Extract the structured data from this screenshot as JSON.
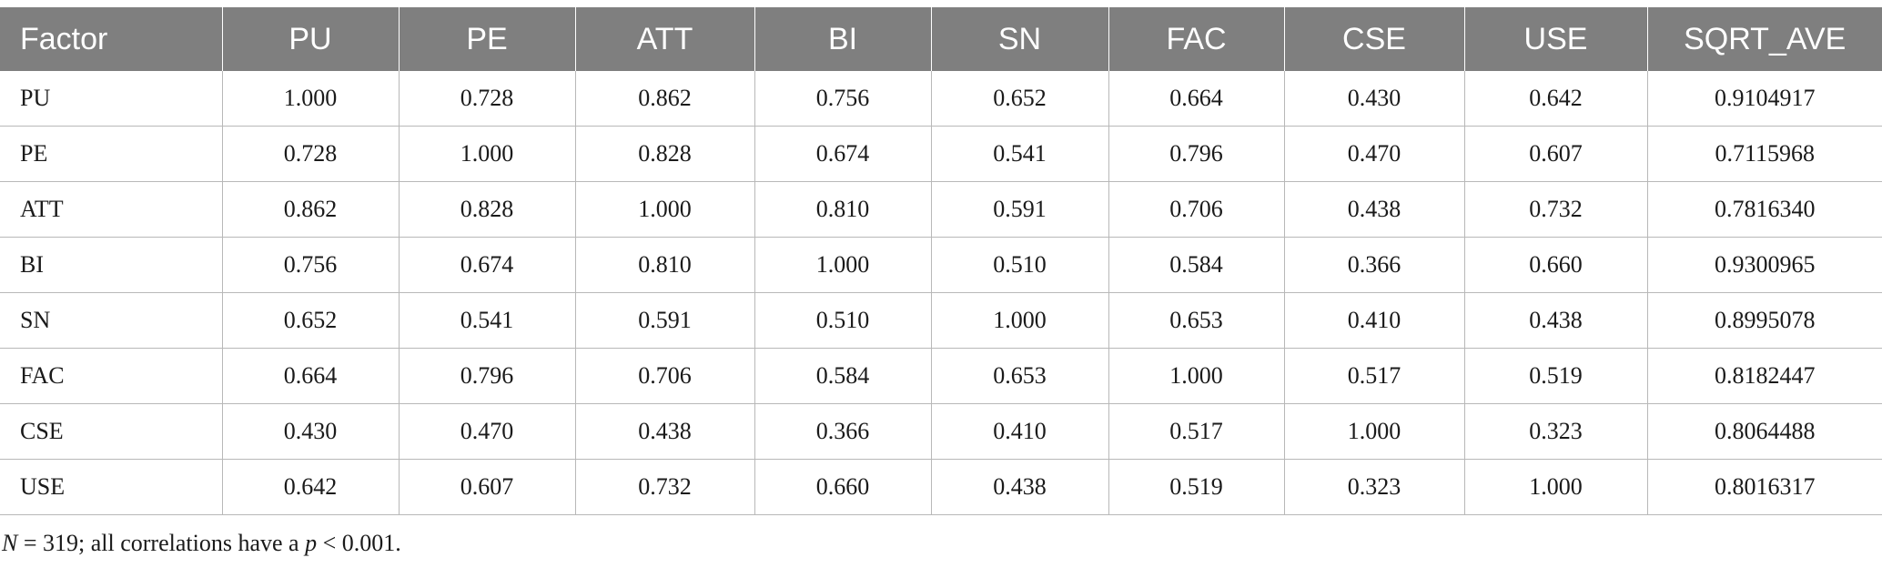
{
  "table": {
    "headers": [
      "Factor",
      "PU",
      "PE",
      "ATT",
      "BI",
      "SN",
      "FAC",
      "CSE",
      "USE",
      "SQRT_AVE"
    ],
    "rows": [
      [
        "PU",
        "1.000",
        "0.728",
        "0.862",
        "0.756",
        "0.652",
        "0.664",
        "0.430",
        "0.642",
        "0.9104917"
      ],
      [
        "PE",
        "0.728",
        "1.000",
        "0.828",
        "0.674",
        "0.541",
        "0.796",
        "0.470",
        "0.607",
        "0.7115968"
      ],
      [
        "ATT",
        "0.862",
        "0.828",
        "1.000",
        "0.810",
        "0.591",
        "0.706",
        "0.438",
        "0.732",
        "0.7816340"
      ],
      [
        "BI",
        "0.756",
        "0.674",
        "0.810",
        "1.000",
        "0.510",
        "0.584",
        "0.366",
        "0.660",
        "0.9300965"
      ],
      [
        "SN",
        "0.652",
        "0.541",
        "0.591",
        "0.510",
        "1.000",
        "0.653",
        "0.410",
        "0.438",
        "0.8995078"
      ],
      [
        "FAC",
        "0.664",
        "0.796",
        "0.706",
        "0.584",
        "0.653",
        "1.000",
        "0.517",
        "0.519",
        "0.8182447"
      ],
      [
        "CSE",
        "0.430",
        "0.470",
        "0.438",
        "0.366",
        "0.410",
        "0.517",
        "1.000",
        "0.323",
        "0.8064488"
      ],
      [
        "USE",
        "0.642",
        "0.607",
        "0.732",
        "0.660",
        "0.438",
        "0.519",
        "0.323",
        "1.000",
        "0.8016317"
      ]
    ]
  },
  "footnote": {
    "n_symbol": "N",
    "n_text": " = 319; all correlations have a ",
    "p_symbol": "p",
    "p_text": " < 0.001."
  }
}
